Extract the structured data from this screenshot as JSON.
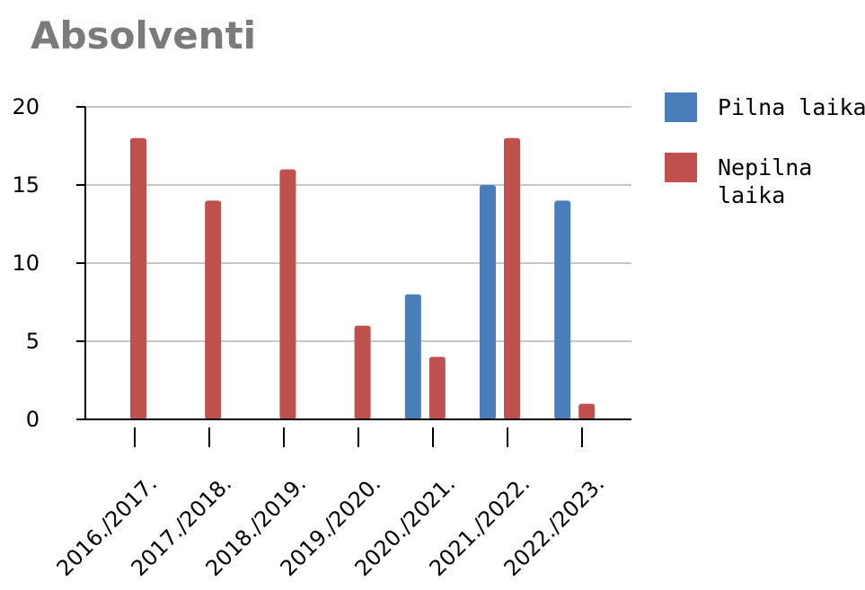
{
  "chart_data": {
    "type": "bar",
    "title": "Absolventi",
    "xlabel": "",
    "ylabel": "",
    "categories": [
      "2016./2017.",
      "2017./2018.",
      "2018./2019.",
      "2019./2020.",
      "2020./2021.",
      "2021./2022.",
      "2022./2023."
    ],
    "series": [
      {
        "name": "Pilna laika",
        "color": "#4a7ebb",
        "values": [
          0,
          0,
          0,
          0,
          8,
          15,
          14
        ]
      },
      {
        "name": "Nepilna laika",
        "color": "#c0504d",
        "values": [
          18,
          14,
          16,
          6,
          4,
          18,
          1
        ]
      }
    ],
    "ylim": [
      0,
      20
    ],
    "yticks": [
      0,
      5,
      10,
      15,
      20
    ],
    "grid": true,
    "legend_position": "right"
  }
}
